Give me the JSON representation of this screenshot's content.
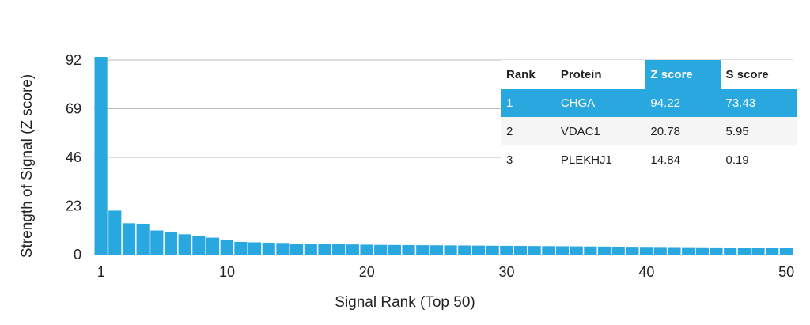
{
  "chart_data": {
    "type": "bar",
    "xlabel": "Signal Rank (Top 50)",
    "ylabel": "Strength of Signal (Z score)",
    "ylim": [
      0,
      92
    ],
    "yticks": [
      0,
      23,
      46,
      69,
      92
    ],
    "xticks": [
      1,
      10,
      20,
      30,
      40,
      50
    ],
    "grid": true,
    "bar_color": "#29a8e0",
    "categories": [
      1,
      2,
      3,
      4,
      5,
      6,
      7,
      8,
      9,
      10,
      11,
      12,
      13,
      14,
      15,
      16,
      17,
      18,
      19,
      20,
      21,
      22,
      23,
      24,
      25,
      26,
      27,
      28,
      29,
      30,
      31,
      32,
      33,
      34,
      35,
      36,
      37,
      38,
      39,
      40,
      41,
      42,
      43,
      44,
      45,
      46,
      47,
      48,
      49,
      50
    ],
    "values": [
      94.22,
      20.78,
      14.84,
      14.6,
      11.4,
      10.6,
      9.6,
      8.9,
      8.0,
      7.0,
      6.0,
      5.8,
      5.6,
      5.5,
      5.2,
      5.1,
      5.0,
      4.9,
      4.8,
      4.7,
      4.6,
      4.55,
      4.5,
      4.45,
      4.4,
      4.35,
      4.3,
      4.25,
      4.2,
      4.15,
      4.1,
      4.05,
      4.0,
      3.95,
      3.9,
      3.85,
      3.8,
      3.75,
      3.7,
      3.65,
      3.6,
      3.55,
      3.5,
      3.45,
      3.4,
      3.35,
      3.3,
      3.25,
      3.2,
      3.1
    ]
  },
  "table": {
    "headers": [
      "Rank",
      "Protein",
      "Z score",
      "S score"
    ],
    "rows": [
      [
        "1",
        "CHGA",
        "94.22",
        "73.43"
      ],
      [
        "2",
        "VDAC1",
        "20.78",
        "5.95"
      ],
      [
        "3",
        "PLEKHJ1",
        "14.84",
        "0.19"
      ]
    ]
  }
}
